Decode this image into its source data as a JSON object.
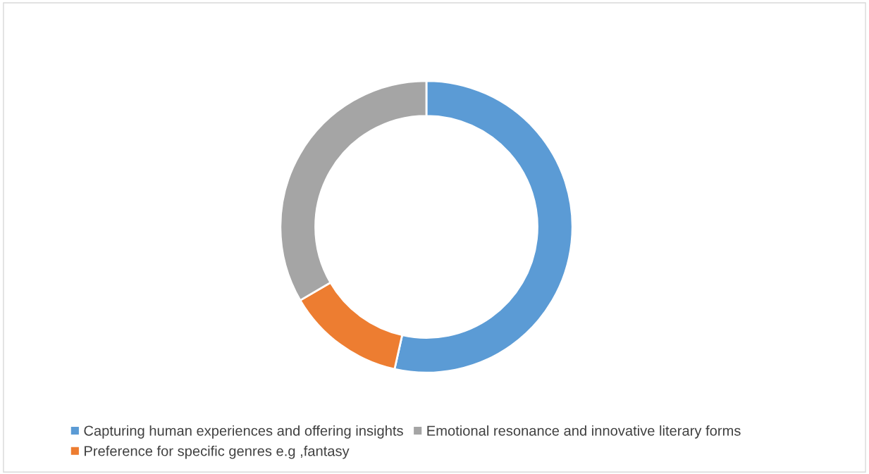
{
  "chart_data": {
    "type": "donut",
    "categories": [
      "Capturing human experiences and offering insights",
      "Preference for specific genres e.g ,fantasy",
      "Emotional resonance and innovative literary forms"
    ],
    "values": [
      53.5,
      13.1,
      33.4
    ],
    "colors": [
      "#5b9bd5",
      "#ed7d31",
      "#a5a5a5"
    ],
    "legend": "bottom"
  }
}
